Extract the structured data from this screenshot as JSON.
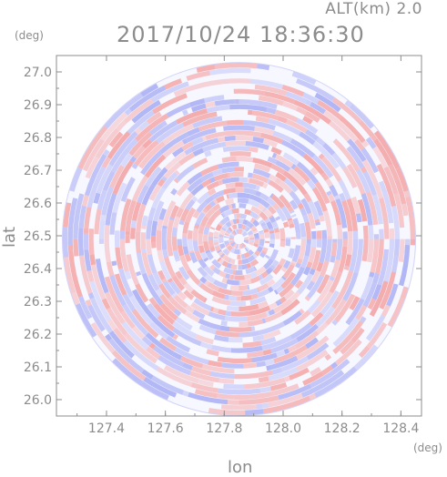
{
  "header": {
    "altitude_label": "ALT(km) 2.0",
    "timestamp": "2017/10/24 18:36:30"
  },
  "chart_data": {
    "type": "heatmap",
    "title": "2017/10/24 18:36:30",
    "subtitle": "ALT(km) 2.0",
    "xlabel": "lon",
    "ylabel": "lat",
    "xunit": "(deg)",
    "yunit": "(deg)",
    "xlim": [
      127.23,
      128.47
    ],
    "ylim": [
      25.95,
      27.05
    ],
    "x_ticks": [
      127.4,
      127.6,
      127.8,
      128.0,
      128.2,
      128.4
    ],
    "x_tick_labels": [
      "127.4",
      "127.6",
      "127.8",
      "128.0",
      "128.2",
      "128.4"
    ],
    "y_ticks": [
      26.0,
      26.1,
      26.2,
      26.3,
      26.4,
      26.5,
      26.6,
      26.7,
      26.8,
      26.9,
      27.0
    ],
    "y_tick_labels": [
      "26.0",
      "26.1",
      "26.2",
      "26.3",
      "26.4",
      "26.5",
      "26.6",
      "26.7",
      "26.8",
      "26.9",
      "27.0"
    ],
    "radar_center": {
      "lon": 127.85,
      "lat": 26.49
    },
    "radar_range_deg_lon": 0.6,
    "grid": false,
    "colors": {
      "positive": "#f4a3a3",
      "negative": "#a9aef4",
      "neutral": "#f7f7ff",
      "axis": "#8c8c8c"
    }
  }
}
